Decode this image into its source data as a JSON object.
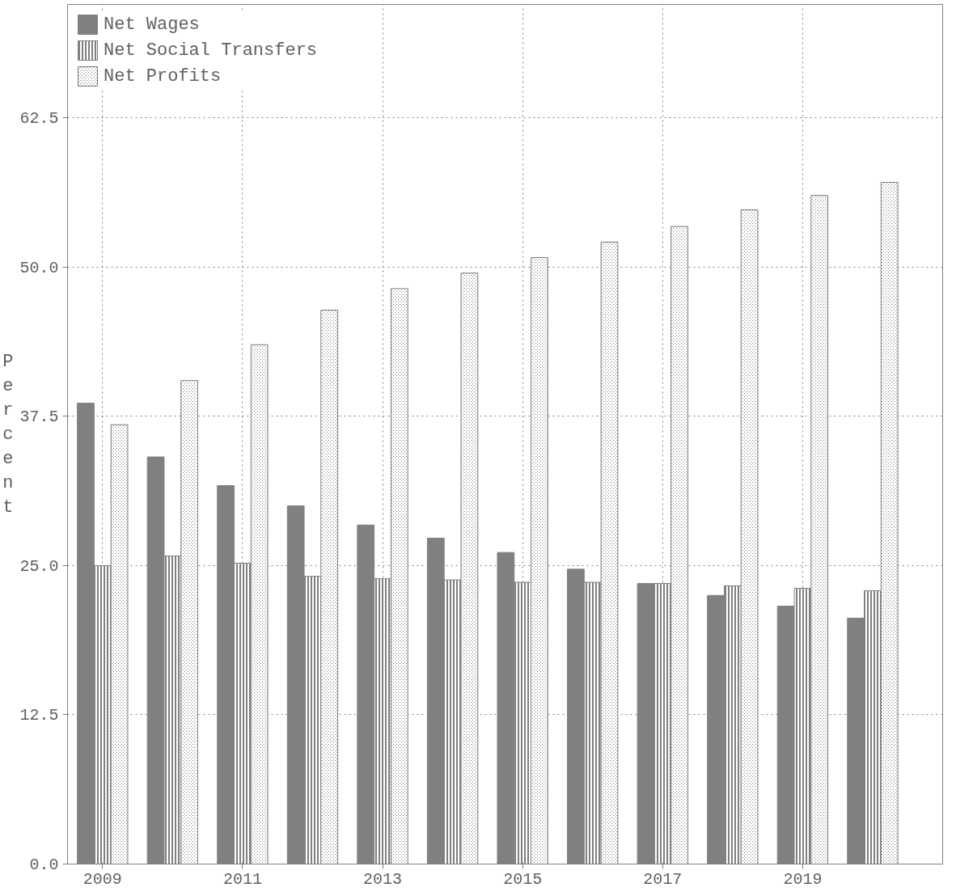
{
  "chart_data": {
    "type": "bar",
    "ylabel": "Percent",
    "x": [
      2009,
      2010,
      2011,
      2012,
      2013,
      2014,
      2015,
      2016,
      2017,
      2018,
      2019,
      2020
    ],
    "series": [
      {
        "name": "Net Wages",
        "color": "#808080",
        "values": [
          38.6,
          34.1,
          31.7,
          30.0,
          28.4,
          27.3,
          26.1,
          24.7,
          23.5,
          22.5,
          21.6,
          20.6
        ]
      },
      {
        "name": "Net Social Transfers",
        "color": "#808080",
        "values": [
          25.0,
          25.8,
          25.2,
          24.1,
          23.9,
          23.8,
          23.6,
          23.6,
          23.5,
          23.3,
          23.1,
          22.9
        ]
      },
      {
        "name": "Net Profits",
        "color": "#808080",
        "values": [
          36.8,
          40.5,
          43.5,
          46.4,
          48.2,
          49.5,
          50.8,
          52.1,
          53.4,
          54.8,
          56.0,
          57.1
        ]
      }
    ],
    "xlim": [
      2008.5,
      2021
    ],
    "xticks": [
      2009,
      2011,
      2013,
      2015,
      2017,
      2019
    ],
    "ylim": [
      0,
      72
    ],
    "yticks": [
      {
        "value": 0,
        "label": "0.0"
      },
      12.5,
      {
        "value": 25,
        "label": "25.0"
      },
      37.5,
      {
        "value": 50,
        "label": "50.0"
      },
      62.5
    ],
    "grid": true,
    "legend": "top left"
  }
}
